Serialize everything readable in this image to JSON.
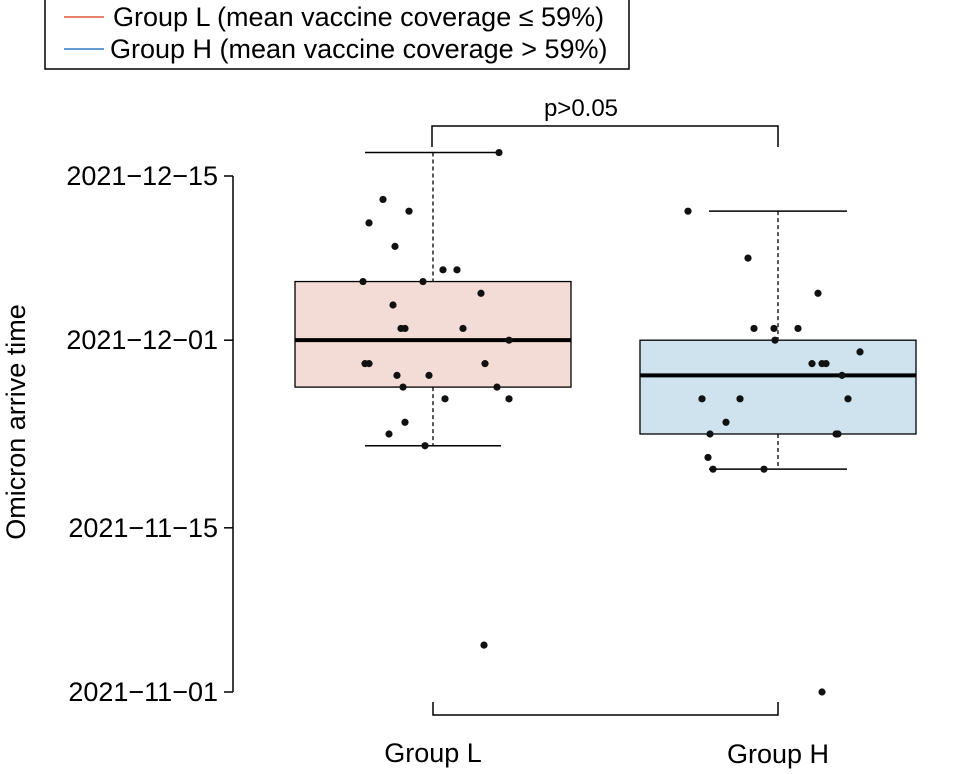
{
  "chart_data": {
    "type": "box",
    "ylabel": "Omicron arrive time",
    "yaxis": {
      "scale": "date",
      "ticks": [
        "2021-11-01",
        "2021-11-15",
        "2021-12-01",
        "2021-12-15"
      ],
      "range": [
        "2021-10-31",
        "2021-12-17"
      ]
    },
    "categories": [
      "Group L",
      "Group H"
    ],
    "legend": {
      "placement": "top-left",
      "entries": [
        {
          "label": "Group L (mean vaccine coverage ≤ 59%)",
          "color": "#e05a3a"
        },
        {
          "label": "Group H (mean vaccine coverage > 59%)",
          "color": "#2e78c2"
        }
      ]
    },
    "boxes": [
      {
        "category": "Group L",
        "fill": "#f4dcd6",
        "min": "2021-11-22",
        "q1": "2021-11-27",
        "median": "2021-12-01",
        "q3": "2021-12-06",
        "max": "2021-12-17",
        "points": [
          "2021-12-17",
          "2021-12-13",
          "2021-12-12",
          "2021-12-11",
          "2021-12-09",
          "2021-12-07",
          "2021-12-07",
          "2021-12-06",
          "2021-12-06",
          "2021-12-05",
          "2021-12-04",
          "2021-12-02",
          "2021-12-02",
          "2021-12-02",
          "2021-12-01",
          "2021-11-29",
          "2021-11-29",
          "2021-11-29",
          "2021-11-28",
          "2021-11-28",
          "2021-11-27",
          "2021-11-27",
          "2021-11-26",
          "2021-11-26",
          "2021-11-24",
          "2021-11-23",
          "2021-11-22",
          "2021-11-05"
        ]
      },
      {
        "category": "Group H",
        "fill": "#cfe3ef",
        "min": "2021-11-20",
        "q1": "2021-11-23",
        "median": "2021-11-28",
        "q3": "2021-12-01",
        "max": "2021-12-12",
        "points": [
          "2021-12-12",
          "2021-12-08",
          "2021-12-05",
          "2021-12-02",
          "2021-12-02",
          "2021-12-02",
          "2021-12-01",
          "2021-11-30",
          "2021-11-29",
          "2021-11-29",
          "2021-11-29",
          "2021-11-28",
          "2021-11-26",
          "2021-11-26",
          "2021-11-26",
          "2021-11-24",
          "2021-11-23",
          "2021-11-23",
          "2021-11-23",
          "2021-11-21",
          "2021-11-20",
          "2021-11-20",
          "2021-11-01"
        ]
      }
    ],
    "annotations": [
      {
        "text": "p>0.05",
        "between": [
          "Group L",
          "Group H"
        ],
        "position": "above"
      }
    ]
  }
}
